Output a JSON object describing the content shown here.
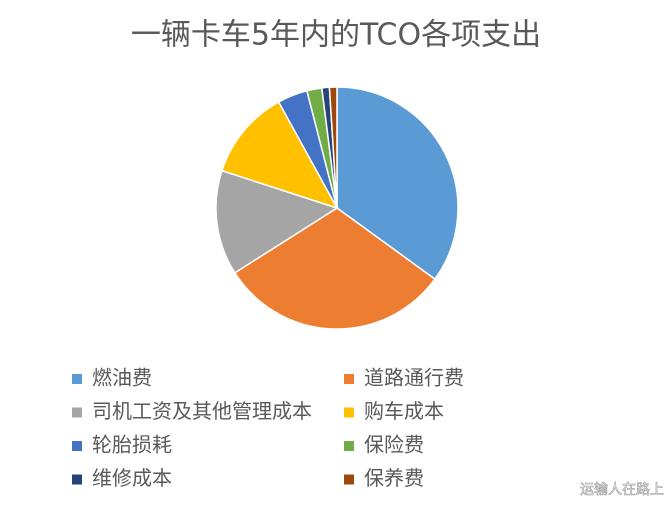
{
  "chart_data": {
    "type": "pie",
    "title": "一辆卡车5年内的TCO各项支出",
    "categories": [
      "燃油费",
      "道路通行费",
      "司机工资及其他管理成本",
      "购车成本",
      "轮胎损耗",
      "保险费",
      "维修成本",
      "保养费"
    ],
    "values": [
      35,
      31,
      14,
      12,
      4,
      2,
      1,
      1
    ],
    "colors": [
      "#5b9bd5",
      "#ed7d31",
      "#a5a5a5",
      "#ffc000",
      "#4472c4",
      "#70ad47",
      "#264478",
      "#9e480e"
    ],
    "legend": "bottom"
  },
  "watermark": "运输人在路上"
}
